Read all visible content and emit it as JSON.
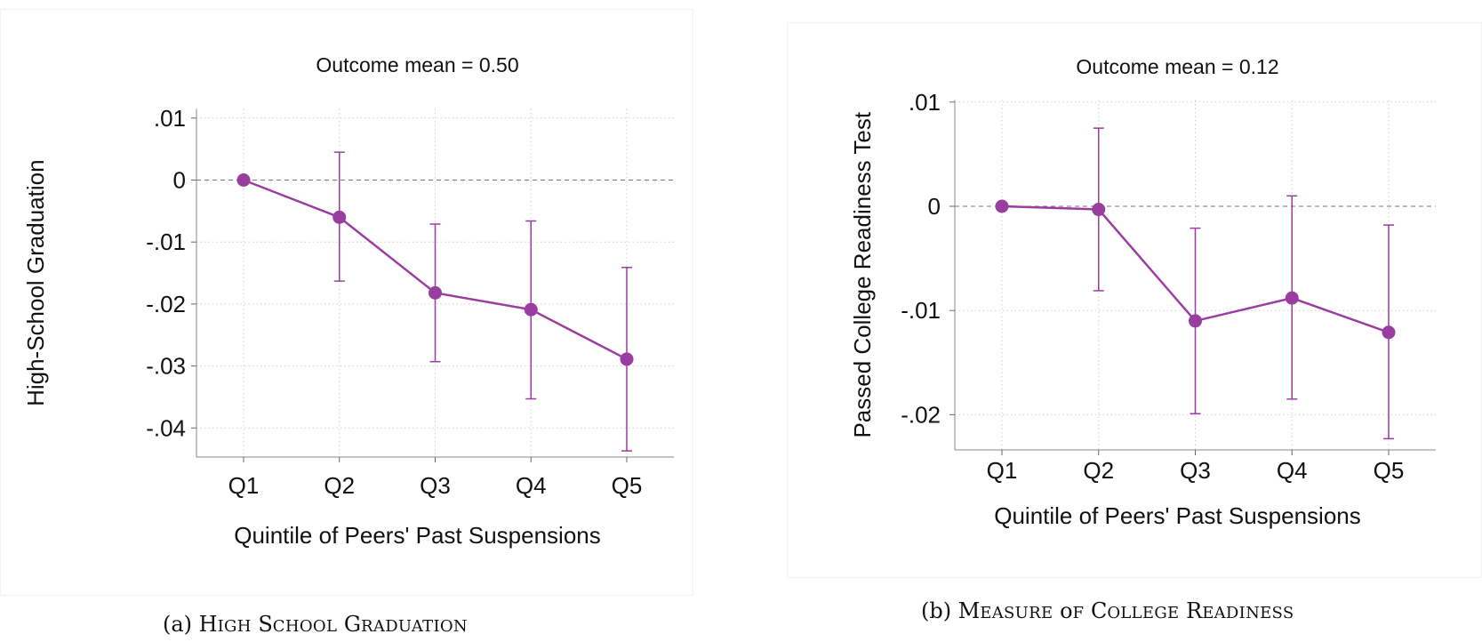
{
  "chart_data": [
    {
      "type": "line",
      "panel": "a",
      "title": "Outcome mean = 0.50",
      "xlabel": "Quintile of Peers' Past Suspensions",
      "ylabel": "High-School Graduation",
      "categories": [
        "Q1",
        "Q2",
        "Q3",
        "Q4",
        "Q5"
      ],
      "yticks": [
        0.01,
        0,
        -0.01,
        -0.02,
        -0.03,
        -0.04
      ],
      "ytick_labels": [
        ".01",
        "0",
        "-.01",
        "-.02",
        "-.03",
        "-.04"
      ],
      "ylim": [
        -0.0455,
        0.0115
      ],
      "series": [
        {
          "values": [
            0,
            -0.006,
            -0.0182,
            -0.0209,
            -0.0289
          ],
          "ci_low": [
            0,
            -0.0163,
            -0.0293,
            -0.0353,
            -0.0437
          ],
          "ci_high": [
            0,
            0.0045,
            -0.0071,
            -0.0066,
            -0.0141
          ]
        }
      ],
      "zero_line": true,
      "grid": true,
      "color": "#9a3da0",
      "caption": "(a) High School Graduation"
    },
    {
      "type": "line",
      "panel": "b",
      "title": "Outcome mean = 0.12",
      "xlabel": "Quintile of Peers' Past Suspensions",
      "ylabel": "Passed College Readiness Test",
      "categories": [
        "Q1",
        "Q2",
        "Q3",
        "Q4",
        "Q5"
      ],
      "yticks": [
        0.01,
        0,
        -0.01,
        -0.02
      ],
      "ytick_labels": [
        ".01",
        "0",
        "-.01",
        "-.02"
      ],
      "ylim": [
        -0.0236,
        0.0102
      ],
      "series": [
        {
          "values": [
            0,
            -0.0003,
            -0.011,
            -0.0088,
            -0.0121
          ],
          "ci_low": [
            0,
            -0.0081,
            -0.0199,
            -0.0185,
            -0.0223
          ],
          "ci_high": [
            0,
            0.0075,
            -0.0021,
            0.001,
            -0.0018
          ]
        }
      ],
      "zero_line": true,
      "grid": true,
      "color": "#9a3da0",
      "caption": "(b) Measure of College Readiness"
    }
  ],
  "captions": {
    "a": {
      "prefix": "(a) ",
      "words": [
        "High",
        "School",
        "Graduation"
      ]
    },
    "b": {
      "prefix": "(b) ",
      "words": [
        "Measure",
        "of",
        "College",
        "Readiness"
      ]
    }
  }
}
